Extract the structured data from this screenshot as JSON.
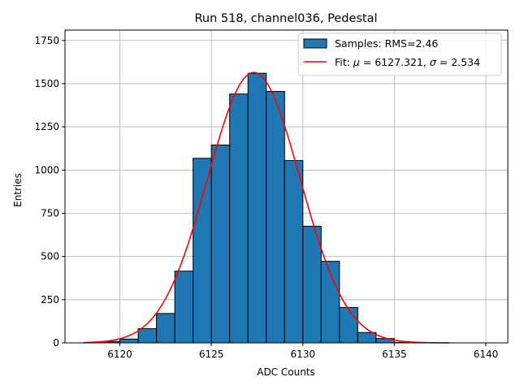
{
  "chart_data": {
    "type": "bar",
    "title": "Run 518, channel036, Pedestal",
    "xlabel": "ADC Counts",
    "ylabel": "Entries",
    "xlim": [
      6117.0,
      6141.2
    ],
    "ylim": [
      0,
      1810
    ],
    "xticks": [
      6120,
      6125,
      6130,
      6135,
      6140
    ],
    "yticks": [
      0,
      250,
      500,
      750,
      1000,
      1250,
      1500,
      1750
    ],
    "grid": true,
    "legend_position": "top-right",
    "bin_width": 1,
    "bins": [
      {
        "left": 6119,
        "value": 8
      },
      {
        "left": 6120,
        "value": 22
      },
      {
        "left": 6121,
        "value": 82
      },
      {
        "left": 6122,
        "value": 170
      },
      {
        "left": 6123,
        "value": 415
      },
      {
        "left": 6124,
        "value": 1068
      },
      {
        "left": 6125,
        "value": 1145
      },
      {
        "left": 6126,
        "value": 1440
      },
      {
        "left": 6127,
        "value": 1560
      },
      {
        "left": 6128,
        "value": 1455
      },
      {
        "left": 6129,
        "value": 1055
      },
      {
        "left": 6130,
        "value": 675
      },
      {
        "left": 6131,
        "value": 472
      },
      {
        "left": 6132,
        "value": 205
      },
      {
        "left": 6133,
        "value": 60
      },
      {
        "left": 6134,
        "value": 25
      },
      {
        "left": 6135,
        "value": 3
      }
    ],
    "fit": {
      "mu": 6127.321,
      "sigma": 2.534,
      "peak": 1565,
      "x_range": [
        6118,
        6138
      ]
    },
    "series": [
      {
        "name": "Samples: RMS=2.46",
        "color": "#1f77b4",
        "kind": "histogram"
      },
      {
        "name_prefix": "Fit: ",
        "mu_label": "μ",
        "mu_value": "6127.321",
        "sigma_label": "σ",
        "sigma_value": "2.534",
        "color": "#ff0000",
        "kind": "line"
      }
    ]
  }
}
